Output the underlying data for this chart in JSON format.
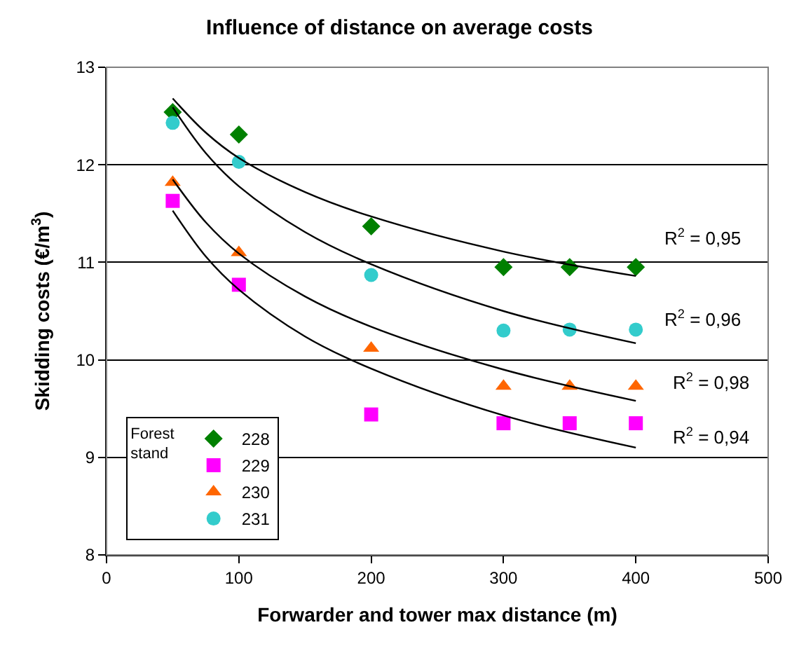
{
  "chart_data": {
    "type": "scatter",
    "title": "Influence of distance on average costs",
    "xlabel": "Forwarder and tower max distance (m)",
    "ylabel": "Skidding costs (€/m$^{3}$)",
    "legend_title": "Forest stand",
    "legend": "bottom left",
    "grid": "y",
    "xlim": [
      0,
      500
    ],
    "xticks": [
      0,
      100,
      200,
      300,
      400,
      500
    ],
    "ylim": [
      8,
      13
    ],
    "yticks": [
      8,
      9,
      10,
      11,
      12,
      13
    ],
    "x": [
      50,
      100,
      200,
      300,
      350,
      400
    ],
    "series": [
      {
        "name": "228",
        "color": "#008000",
        "marker": "diamond",
        "values": [
          12.54,
          12.31,
          11.37,
          10.95,
          10.95,
          10.95
        ]
      },
      {
        "name": "229",
        "color": "#ff00ff",
        "marker": "square",
        "values": [
          11.63,
          10.77,
          9.44,
          9.35,
          9.35,
          9.35
        ]
      },
      {
        "name": "230",
        "color": "#ff6600",
        "marker": "triangle",
        "values": [
          11.82,
          11.1,
          10.12,
          9.73,
          9.73,
          9.73
        ]
      },
      {
        "name": "231",
        "color": "#33cccc",
        "marker": "circle",
        "values": [
          12.43,
          12.03,
          10.87,
          10.3,
          10.31,
          10.31
        ]
      },
      {
        "type": "line",
        "color": "#000000",
        "marker": "none",
        "x": [
          50,
          75,
          100,
          150,
          200,
          300,
          400
        ],
        "values": [
          12.68,
          12.33,
          12.07,
          11.72,
          11.47,
          11.11,
          10.86
        ]
      },
      {
        "type": "line",
        "color": "#000000",
        "marker": "none",
        "x": [
          50,
          75,
          100,
          150,
          200,
          300,
          400
        ],
        "values": [
          11.53,
          11.06,
          10.72,
          10.24,
          9.91,
          9.43,
          9.1
        ]
      },
      {
        "type": "line",
        "color": "#000000",
        "marker": "none",
        "x": [
          50,
          75,
          100,
          150,
          200,
          300,
          400
        ],
        "values": [
          11.85,
          11.41,
          11.09,
          10.65,
          10.34,
          9.9,
          9.58
        ]
      },
      {
        "type": "line",
        "color": "#000000",
        "marker": "none",
        "x": [
          50,
          75,
          100,
          150,
          200,
          300,
          400
        ],
        "values": [
          12.59,
          12.12,
          11.78,
          11.31,
          10.98,
          10.5,
          10.17
        ]
      }
    ],
    "annotations": [
      "R$^{2}$ = 0,95",
      "R$^{2}$ = 0,96",
      "R$^{2}$ = 0,98",
      "R$^{2}$ = 0,94"
    ]
  }
}
